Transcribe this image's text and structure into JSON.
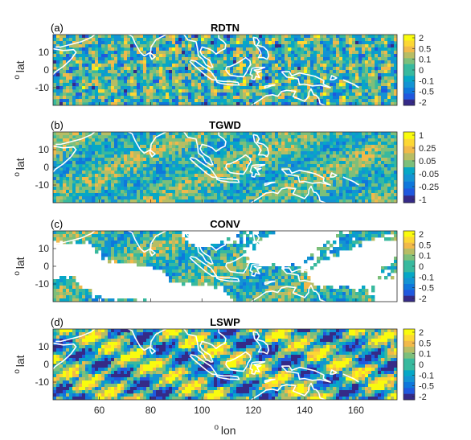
{
  "chart_data": {
    "type": "heatmap",
    "x_label_superscript": "o",
    "x_label": "lon",
    "y_label_superscript": "o",
    "y_label": "lat",
    "x_ticks": [
      60,
      80,
      100,
      120,
      140,
      160
    ],
    "y_ticks": [
      10,
      0,
      -10
    ],
    "xlim": [
      42,
      176
    ],
    "ylim": [
      -20,
      20
    ],
    "colormap": "parula",
    "panels": [
      {
        "letter": "(a)",
        "title": "RDTN",
        "colorbar_ticks": [
          "2",
          "0.5",
          "0.1",
          "0",
          "-0.1",
          "-0.5",
          "-2"
        ],
        "pattern": "wave",
        "sparse": false
      },
      {
        "letter": "(b)",
        "title": "TGWD",
        "colorbar_ticks": [
          "1",
          "0.25",
          "0.05",
          "-0.05",
          "-0.25",
          "-1"
        ],
        "pattern": "smooth",
        "sparse": false
      },
      {
        "letter": "(c)",
        "title": "CONV",
        "colorbar_ticks": [
          "2",
          "0.5",
          "0.1",
          "0",
          "-0.1",
          "-0.5",
          "-2"
        ],
        "pattern": "smooth",
        "sparse": true
      },
      {
        "letter": "(d)",
        "title": "LSWP",
        "colorbar_ticks": [
          "2",
          "0.5",
          "0.1",
          "0",
          "-0.1",
          "-0.5",
          "-2"
        ],
        "pattern": "extreme",
        "sparse": false
      }
    ]
  }
}
